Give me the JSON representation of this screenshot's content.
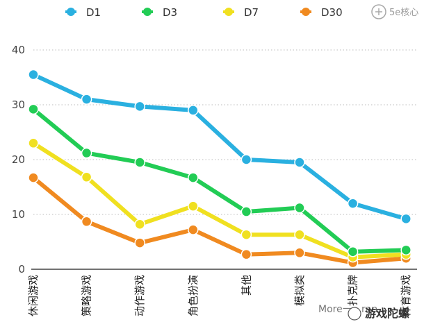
{
  "chart_data": {
    "type": "line",
    "title": "",
    "xlabel": "",
    "ylabel": "",
    "ylim": [
      0,
      40
    ],
    "yticks": [
      0,
      10,
      20,
      30,
      40
    ],
    "grid": true,
    "legend_position": "top",
    "categories": [
      "休闲游戏",
      "策略游戏",
      "动作游戏",
      "角色扮演",
      "其他",
      "模拟类",
      "扑克牌",
      "体育游戏"
    ],
    "series": [
      {
        "name": "D1",
        "color": "#2ab0e0",
        "values": [
          35.5,
          31.0,
          29.7,
          29.0,
          20.0,
          19.5,
          12.0,
          9.2
        ]
      },
      {
        "name": "D3",
        "color": "#22cc55",
        "values": [
          29.2,
          21.2,
          19.5,
          16.7,
          10.5,
          11.2,
          3.2,
          3.5
        ]
      },
      {
        "name": "D7",
        "color": "#f0e020",
        "values": [
          23.0,
          16.8,
          8.2,
          11.5,
          6.3,
          6.3,
          2.2,
          2.7
        ]
      },
      {
        "name": "D30",
        "color": "#f08a20",
        "values": [
          16.7,
          8.7,
          4.8,
          7.2,
          2.7,
          3.0,
          1.2,
          2.0
        ]
      }
    ]
  },
  "watermark": {
    "site": "5e核心",
    "bottom_text": "More一...ran...",
    "account": "游戏陀螺"
  }
}
